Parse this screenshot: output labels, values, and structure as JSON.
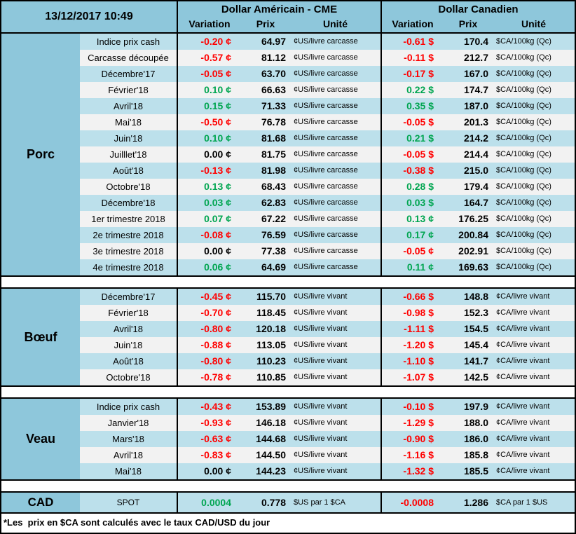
{
  "header": {
    "date": "13/12/2017 10:49",
    "us_title": "Dollar Américain - CME",
    "ca_title": "Dollar Canadien",
    "columns": {
      "variation": "Variation",
      "prix": "Prix",
      "unite": "Unité"
    }
  },
  "colors": {
    "header_blue": "#8ec7db",
    "row_blue": "#bce0eb",
    "row_alt": "#f2f2f2",
    "positive": "#00a550",
    "negative": "#ff0000"
  },
  "sections": [
    {
      "id": "porc",
      "name": "Porc",
      "rows": [
        [
          "Indice prix cash",
          "-0.20 ¢",
          "64.97",
          "¢US/livre carcasse",
          "-0.61 $",
          "170.4",
          "$CA/100kg (Qc)"
        ],
        [
          "Carcasse découpée",
          "-0.57 ¢",
          "81.12",
          "¢US/livre carcasse",
          "-0.11 $",
          "212.7",
          "$CA/100kg (Qc)"
        ],
        [
          "Décembre'17",
          "-0.05 ¢",
          "63.70",
          "¢US/livre carcasse",
          "-0.17 $",
          "167.0",
          "$CA/100kg (Qc)"
        ],
        [
          "Février'18",
          "0.10 ¢",
          "66.63",
          "¢US/livre carcasse",
          "0.22 $",
          "174.7",
          "$CA/100kg (Qc)"
        ],
        [
          "Avril'18",
          "0.15 ¢",
          "71.33",
          "¢US/livre carcasse",
          "0.35 $",
          "187.0",
          "$CA/100kg (Qc)"
        ],
        [
          "Mai'18",
          "-0.50 ¢",
          "76.78",
          "¢US/livre carcasse",
          "-0.05 $",
          "201.3",
          "$CA/100kg (Qc)"
        ],
        [
          "Juin'18",
          "0.10 ¢",
          "81.68",
          "¢US/livre carcasse",
          "0.21 $",
          "214.2",
          "$CA/100kg (Qc)"
        ],
        [
          "Juilllet'18",
          "0.00 ¢",
          "81.75",
          "¢US/livre carcasse",
          "-0.05 $",
          "214.4",
          "$CA/100kg (Qc)"
        ],
        [
          "Août'18",
          "-0.13 ¢",
          "81.98",
          "¢US/livre carcasse",
          "-0.38 $",
          "215.0",
          "$CA/100kg (Qc)"
        ],
        [
          "Octobre'18",
          "0.13 ¢",
          "68.43",
          "¢US/livre carcasse",
          "0.28 $",
          "179.4",
          "$CA/100kg (Qc)"
        ],
        [
          "Décembre'18",
          "0.03 ¢",
          "62.83",
          "¢US/livre carcasse",
          "0.03 $",
          "164.7",
          "$CA/100kg (Qc)"
        ],
        [
          "1er trimestre 2018",
          "0.07 ¢",
          "67.22",
          "¢US/livre carcasse",
          "0.13 ¢",
          "176.25",
          "$CA/100kg (Qc)"
        ],
        [
          "2e trimestre 2018",
          "-0.08 ¢",
          "76.59",
          "¢US/livre carcasse",
          "0.17 ¢",
          "200.84",
          "$CA/100kg (Qc)"
        ],
        [
          "3e trimestre 2018",
          "0.00 ¢",
          "77.38",
          "¢US/livre carcasse",
          "-0.05 ¢",
          "202.91",
          "$CA/100kg (Qc)"
        ],
        [
          "4e trimestre 2018",
          "0.06 ¢",
          "64.69",
          "¢US/livre carcasse",
          "0.11 ¢",
          "169.63",
          "$CA/100kg (Qc)"
        ]
      ]
    },
    {
      "id": "boeuf",
      "name": "Bœuf",
      "rows": [
        [
          "Décembre'17",
          "-0.45 ¢",
          "115.70",
          "¢US/livre vivant",
          "-0.66 $",
          "148.8",
          "¢CA/livre vivant"
        ],
        [
          "Février'18",
          "-0.70 ¢",
          "118.45",
          "¢US/livre vivant",
          "-0.98 $",
          "152.3",
          "¢CA/livre vivant"
        ],
        [
          "Avril'18",
          "-0.80 ¢",
          "120.18",
          "¢US/livre vivant",
          "-1.11 $",
          "154.5",
          "¢CA/livre vivant"
        ],
        [
          "Juin'18",
          "-0.88 ¢",
          "113.05",
          "¢US/livre vivant",
          "-1.20 $",
          "145.4",
          "¢CA/livre vivant"
        ],
        [
          "Août'18",
          "-0.80 ¢",
          "110.23",
          "¢US/livre vivant",
          "-1.10 $",
          "141.7",
          "¢CA/livre vivant"
        ],
        [
          "Octobre'18",
          "-0.78 ¢",
          "110.85",
          "¢US/livre vivant",
          "-1.07 $",
          "142.5",
          "¢CA/livre vivant"
        ]
      ]
    },
    {
      "id": "veau",
      "name": "Veau",
      "rows": [
        [
          "Indice prix cash",
          "-0.43 ¢",
          "153.89",
          "¢US/livre vivant",
          "-0.10 $",
          "197.9",
          "¢CA/livre vivant"
        ],
        [
          "Janvier'18",
          "-0.93 ¢",
          "146.18",
          "¢US/livre vivant",
          "-1.29 $",
          "188.0",
          "¢CA/livre vivant"
        ],
        [
          "Mars'18",
          "-0.63 ¢",
          "144.68",
          "¢US/livre vivant",
          "-0.90 $",
          "186.0",
          "¢CA/livre vivant"
        ],
        [
          "Avril'18",
          "-0.83 ¢",
          "144.50",
          "¢US/livre vivant",
          "-1.16 $",
          "185.8",
          "¢CA/livre vivant"
        ],
        [
          "Mai'18",
          "0.00 ¢",
          "144.23",
          "¢US/livre vivant",
          "-1.32 $",
          "185.5",
          "¢CA/livre vivant"
        ]
      ]
    }
  ],
  "cad": {
    "name": "CAD",
    "label": "SPOT",
    "us_variation": "0.0004",
    "us_prix": "0.778",
    "us_unite": "$US par 1 $CA",
    "ca_variation": "-0.0008",
    "ca_prix": "1.286",
    "ca_unite": "$CA par 1 $US"
  },
  "footnote": "*Les  prix en $CA sont calculés avec le taux CAD/USD du jour"
}
